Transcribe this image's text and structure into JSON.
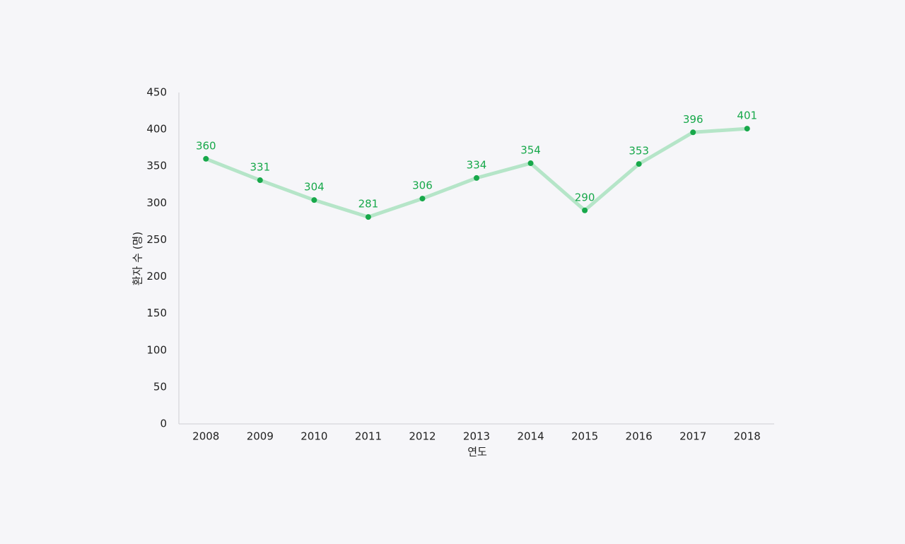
{
  "chart_data": {
    "type": "line",
    "xlabel": "연도",
    "ylabel": "환자 수 (명)",
    "categories": [
      "2008",
      "2009",
      "2010",
      "2011",
      "2012",
      "2013",
      "2014",
      "2015",
      "2016",
      "2017",
      "2018"
    ],
    "values": [
      360,
      331,
      304,
      281,
      306,
      334,
      354,
      290,
      353,
      396,
      401
    ],
    "color": "#b5e5c8",
    "marker_color": "#17a84a",
    "ylim": [
      0,
      450
    ],
    "yticks": [
      0,
      50,
      100,
      150,
      200,
      250,
      300,
      350,
      400,
      450
    ],
    "grid": false
  }
}
